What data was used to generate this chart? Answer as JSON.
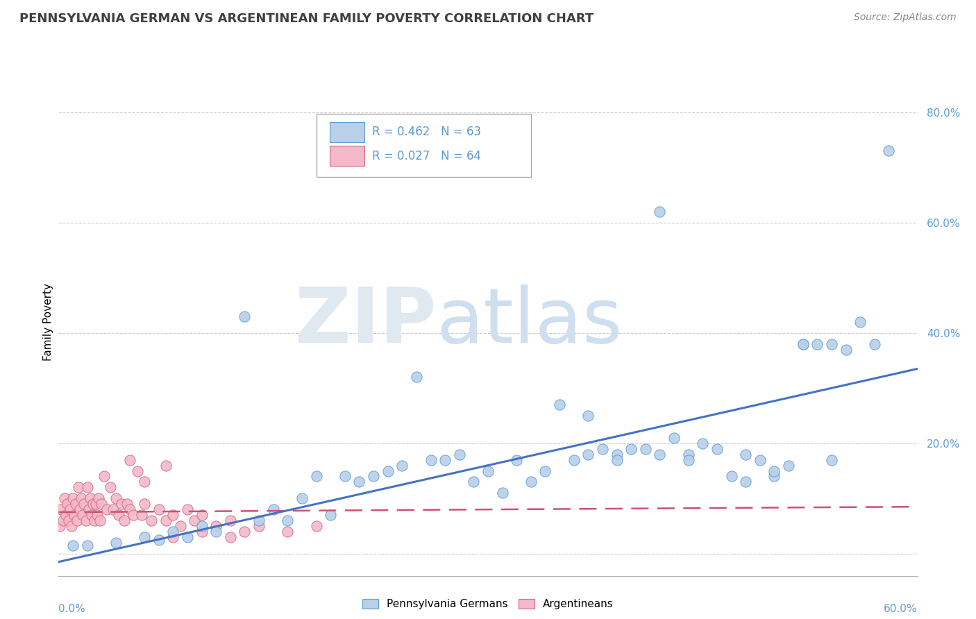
{
  "title": "PENNSYLVANIA GERMAN VS ARGENTINEAN FAMILY POVERTY CORRELATION CHART",
  "source": "Source: ZipAtlas.com",
  "ylabel": "Family Poverty",
  "xlim": [
    0.0,
    0.6
  ],
  "ylim": [
    -0.04,
    0.88
  ],
  "y_ticks": [
    0.0,
    0.2,
    0.4,
    0.6,
    0.8
  ],
  "y_tick_labels": [
    "",
    "20.0%",
    "40.0%",
    "60.0%",
    "80.0%"
  ],
  "legend_line1": "R = 0.462   N = 63",
  "legend_line2": "R = 0.027   N = 64",
  "legend_label1": "Pennsylvania Germans",
  "legend_label2": "Argentineans",
  "blue_fill": "#b8d0e8",
  "blue_edge": "#5b9bd5",
  "pink_fill": "#f4b8c8",
  "pink_edge": "#d06880",
  "line_blue": "#4472c4",
  "line_pink": "#d05070",
  "grid_color": "#cccccc",
  "background_color": "#ffffff",
  "title_color": "#404040",
  "source_color": "#888888",
  "tick_label_color": "#5b9bd5",
  "blue_x": [
    0.01,
    0.02,
    0.04,
    0.06,
    0.07,
    0.08,
    0.09,
    0.1,
    0.11,
    0.13,
    0.14,
    0.15,
    0.16,
    0.17,
    0.18,
    0.19,
    0.2,
    0.21,
    0.22,
    0.23,
    0.24,
    0.25,
    0.26,
    0.27,
    0.28,
    0.29,
    0.3,
    0.31,
    0.32,
    0.33,
    0.34,
    0.35,
    0.36,
    0.37,
    0.37,
    0.38,
    0.39,
    0.39,
    0.4,
    0.41,
    0.42,
    0.43,
    0.44,
    0.44,
    0.45,
    0.46,
    0.47,
    0.48,
    0.48,
    0.49,
    0.5,
    0.5,
    0.51,
    0.52,
    0.53,
    0.54,
    0.55,
    0.56,
    0.57,
    0.58,
    0.52,
    0.54,
    0.42
  ],
  "blue_y": [
    0.015,
    0.015,
    0.02,
    0.03,
    0.025,
    0.04,
    0.03,
    0.05,
    0.04,
    0.43,
    0.06,
    0.08,
    0.06,
    0.1,
    0.14,
    0.07,
    0.14,
    0.13,
    0.14,
    0.15,
    0.16,
    0.32,
    0.17,
    0.17,
    0.18,
    0.13,
    0.15,
    0.11,
    0.17,
    0.13,
    0.15,
    0.27,
    0.17,
    0.18,
    0.25,
    0.19,
    0.18,
    0.17,
    0.19,
    0.19,
    0.18,
    0.21,
    0.18,
    0.17,
    0.2,
    0.19,
    0.14,
    0.18,
    0.13,
    0.17,
    0.14,
    0.15,
    0.16,
    0.38,
    0.38,
    0.17,
    0.37,
    0.42,
    0.38,
    0.73,
    0.38,
    0.38,
    0.62
  ],
  "pink_x": [
    0.001,
    0.002,
    0.003,
    0.004,
    0.005,
    0.006,
    0.007,
    0.008,
    0.009,
    0.01,
    0.011,
    0.012,
    0.013,
    0.014,
    0.015,
    0.016,
    0.017,
    0.018,
    0.019,
    0.02,
    0.021,
    0.022,
    0.023,
    0.024,
    0.025,
    0.026,
    0.027,
    0.028,
    0.029,
    0.03,
    0.032,
    0.034,
    0.036,
    0.038,
    0.04,
    0.042,
    0.044,
    0.046,
    0.048,
    0.05,
    0.052,
    0.055,
    0.058,
    0.06,
    0.065,
    0.07,
    0.075,
    0.08,
    0.085,
    0.09,
    0.095,
    0.1,
    0.11,
    0.12,
    0.13,
    0.14,
    0.16,
    0.18,
    0.05,
    0.075,
    0.1,
    0.06,
    0.08,
    0.12
  ],
  "pink_y": [
    0.05,
    0.08,
    0.06,
    0.1,
    0.07,
    0.09,
    0.06,
    0.08,
    0.05,
    0.1,
    0.07,
    0.09,
    0.06,
    0.12,
    0.08,
    0.1,
    0.07,
    0.09,
    0.06,
    0.12,
    0.08,
    0.1,
    0.07,
    0.09,
    0.06,
    0.09,
    0.07,
    0.1,
    0.06,
    0.09,
    0.14,
    0.08,
    0.12,
    0.08,
    0.1,
    0.07,
    0.09,
    0.06,
    0.09,
    0.08,
    0.07,
    0.15,
    0.07,
    0.09,
    0.06,
    0.08,
    0.06,
    0.07,
    0.05,
    0.08,
    0.06,
    0.07,
    0.05,
    0.06,
    0.04,
    0.05,
    0.04,
    0.05,
    0.17,
    0.16,
    0.04,
    0.13,
    0.03,
    0.03
  ],
  "blue_line_x0": 0.0,
  "blue_line_x1": 0.6,
  "blue_line_y0": -0.015,
  "blue_line_y1": 0.335,
  "pink_line_x0": 0.0,
  "pink_line_x1": 0.6,
  "pink_line_y0": 0.075,
  "pink_line_y1": 0.085
}
